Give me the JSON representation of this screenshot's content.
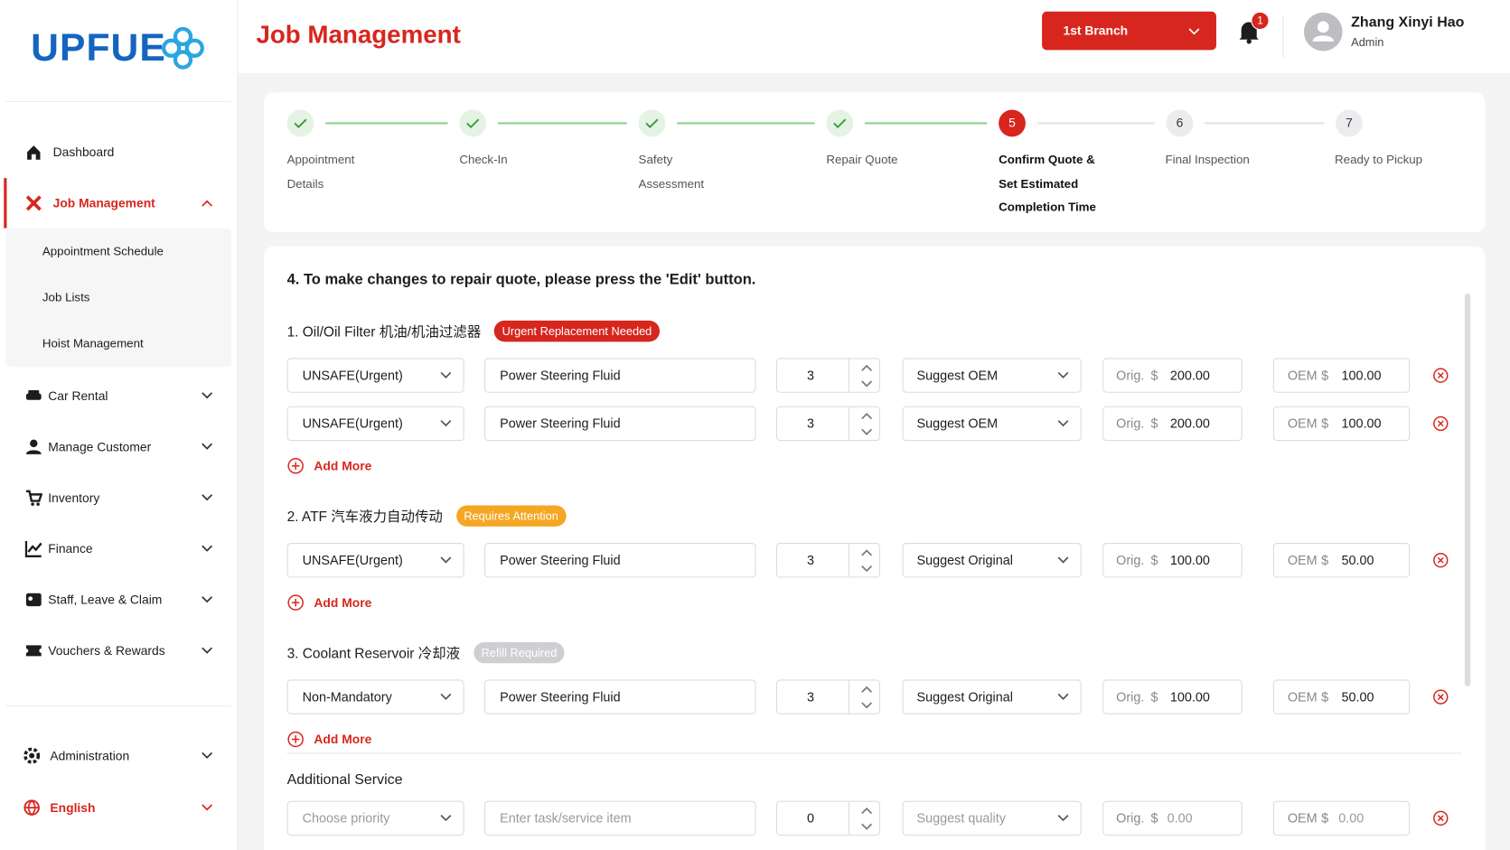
{
  "logo": "UPFUE",
  "sidebar": {
    "items": [
      {
        "label": "Dashboard",
        "icon": "home"
      },
      {
        "label": "Job Management",
        "icon": "tools",
        "active": true,
        "children": [
          "Appointment Schedule",
          "Job Lists",
          "Hoist Management"
        ]
      },
      {
        "label": "Car Rental",
        "icon": "car"
      },
      {
        "label": "Manage Customer",
        "icon": "user"
      },
      {
        "label": "Inventory",
        "icon": "cart"
      },
      {
        "label": "Finance",
        "icon": "chart"
      },
      {
        "label": "Staff, Leave & Claim",
        "icon": "card"
      },
      {
        "label": "Vouchers & Rewards",
        "icon": "ticket"
      }
    ],
    "bottom": [
      {
        "label": "Administration",
        "icon": "gear"
      },
      {
        "label": "English",
        "icon": "globe",
        "accent": true
      }
    ]
  },
  "header": {
    "title": "Job Management",
    "branch": "1st Branch",
    "notifications": 1,
    "user": "Zhang Xinyi Hao",
    "role": "Admin"
  },
  "steps": [
    {
      "label": "Appointment Details",
      "status": "done"
    },
    {
      "label": "Check-In",
      "status": "done"
    },
    {
      "label": "Safety Assessment",
      "status": "done"
    },
    {
      "label": "Repair Quote",
      "status": "done"
    },
    {
      "number": 5,
      "label": "Confirm Quote & Set Estimated Completion Time",
      "status": "current"
    },
    {
      "number": 6,
      "label": "Final Inspection",
      "status": "pending"
    },
    {
      "number": 7,
      "label": "Ready to Pickup",
      "status": "pending"
    }
  ],
  "instruction": "4. To make changes to repair quote, please press the 'Edit' button.",
  "labels": {
    "orig": "Orig.",
    "oem": "OEM",
    "currency": "$",
    "add_more": "Add More"
  },
  "sections": [
    {
      "title": "1. Oil/Oil Filter 机油/机油过滤器",
      "badge": "Urgent Replacement Needed",
      "badge_color": "#d7261e",
      "rows": [
        {
          "priority": "UNSAFE(Urgent)",
          "item": "Power Steering Fluid",
          "qty": 3,
          "suggest": "Suggest OEM",
          "orig": "200.00",
          "oem": "100.00"
        },
        {
          "priority": "UNSAFE(Urgent)",
          "item": "Power Steering Fluid",
          "qty": 3,
          "suggest": "Suggest OEM",
          "orig": "200.00",
          "oem": "100.00"
        }
      ]
    },
    {
      "title": "2. ATF 汽车液力自动传动",
      "badge": "Requires Attention",
      "badge_color": "#f5a623",
      "rows": [
        {
          "priority": "UNSAFE(Urgent)",
          "item": "Power Steering Fluid",
          "qty": 3,
          "suggest": "Suggest Original",
          "orig": "100.00",
          "oem": "50.00"
        }
      ]
    },
    {
      "title": "3. Coolant Reservoir 冷却液",
      "badge": "Refill Required",
      "badge_color": "#cfcfd3",
      "rows": [
        {
          "priority": "Non-Mandatory",
          "item": "Power Steering Fluid",
          "qty": 3,
          "suggest": "Suggest Original",
          "orig": "100.00",
          "oem": "50.00"
        }
      ]
    }
  ],
  "additional": {
    "title": "Additional Service",
    "priority": "Choose priority",
    "item": "Enter task/service item",
    "qty": 0,
    "suggest": "Suggest quality",
    "orig": "0.00",
    "oem": "0.00"
  }
}
